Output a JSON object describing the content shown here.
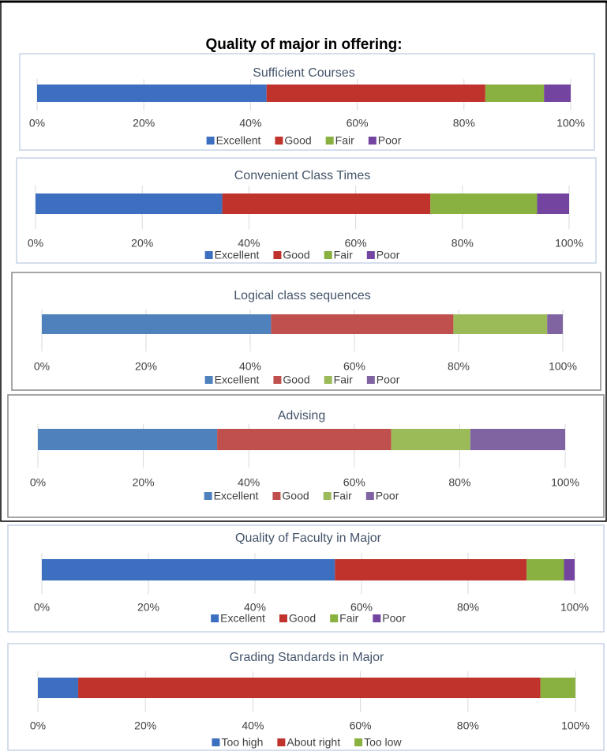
{
  "header": {
    "title": "Quality of major in offering:"
  },
  "chart_data": [
    {
      "type": "stacked-bar-horizontal",
      "title": "Sufficient Courses",
      "xlim": [
        0,
        100
      ],
      "xticks": [
        {
          "value": 0,
          "label": "0%"
        },
        {
          "value": 20,
          "label": "20%"
        },
        {
          "value": 40,
          "label": "40%"
        },
        {
          "value": 60,
          "label": "60%"
        },
        {
          "value": 80,
          "label": "80%"
        },
        {
          "value": 100,
          "label": "100%"
        }
      ],
      "grid": true,
      "legend": "bottom",
      "series": [
        {
          "name": "Excellent",
          "color": "#3c6fc0",
          "values": [
            43
          ]
        },
        {
          "name": "Good",
          "color": "#c0332d",
          "values": [
            41
          ]
        },
        {
          "name": "Fair",
          "color": "#88b13f",
          "values": [
            11
          ]
        },
        {
          "name": "Poor",
          "color": "#7345a0",
          "values": [
            5
          ]
        }
      ]
    },
    {
      "type": "stacked-bar-horizontal",
      "title": "Convenient Class Times",
      "xlim": [
        0,
        100
      ],
      "xticks": [
        {
          "value": 0,
          "label": "0%"
        },
        {
          "value": 20,
          "label": "20%"
        },
        {
          "value": 40,
          "label": "40%"
        },
        {
          "value": 60,
          "label": "60%"
        },
        {
          "value": 80,
          "label": "80%"
        },
        {
          "value": 100,
          "label": "100%"
        }
      ],
      "grid": true,
      "legend": "bottom",
      "series": [
        {
          "name": "Excellent",
          "color": "#3c6fc0",
          "values": [
            35
          ]
        },
        {
          "name": "Good",
          "color": "#c0332d",
          "values": [
            39
          ]
        },
        {
          "name": "Fair",
          "color": "#88b13f",
          "values": [
            20
          ]
        },
        {
          "name": "Poor",
          "color": "#7345a0",
          "values": [
            6
          ]
        }
      ]
    },
    {
      "type": "stacked-bar-horizontal",
      "title": "Logical class sequences",
      "xlim": [
        0,
        100
      ],
      "xticks": [
        {
          "value": 0,
          "label": "0%"
        },
        {
          "value": 20,
          "label": "20%"
        },
        {
          "value": 40,
          "label": "40%"
        },
        {
          "value": 60,
          "label": "60%"
        },
        {
          "value": 80,
          "label": "80%"
        },
        {
          "value": 100,
          "label": "100%"
        }
      ],
      "grid": true,
      "legend": "bottom",
      "series": [
        {
          "name": "Excellent",
          "color": "#4f81bd",
          "values": [
            44
          ]
        },
        {
          "name": "Good",
          "color": "#c0504d",
          "values": [
            35
          ]
        },
        {
          "name": "Fair",
          "color": "#9bbb59",
          "values": [
            18
          ]
        },
        {
          "name": "Poor",
          "color": "#8064a2",
          "values": [
            3
          ]
        }
      ]
    },
    {
      "type": "stacked-bar-horizontal",
      "title": "Advising",
      "xlim": [
        0,
        100
      ],
      "xticks": [
        {
          "value": 0,
          "label": "0%"
        },
        {
          "value": 20,
          "label": "20%"
        },
        {
          "value": 40,
          "label": "40%"
        },
        {
          "value": 60,
          "label": "60%"
        },
        {
          "value": 80,
          "label": "80%"
        },
        {
          "value": 100,
          "label": "100%"
        }
      ],
      "grid": true,
      "legend": "bottom",
      "series": [
        {
          "name": "Excellent",
          "color": "#4f81bd",
          "values": [
            34
          ]
        },
        {
          "name": "Good",
          "color": "#c0504d",
          "values": [
            33
          ]
        },
        {
          "name": "Fair",
          "color": "#9bbb59",
          "values": [
            15
          ]
        },
        {
          "name": "Poor",
          "color": "#8064a2",
          "values": [
            18
          ]
        }
      ]
    },
    {
      "type": "stacked-bar-horizontal",
      "title": "Quality of Faculty in Major",
      "xlim": [
        0,
        100
      ],
      "xticks": [
        {
          "value": 0,
          "label": "0%"
        },
        {
          "value": 20,
          "label": "20%"
        },
        {
          "value": 40,
          "label": "40%"
        },
        {
          "value": 60,
          "label": "60%"
        },
        {
          "value": 80,
          "label": "80%"
        },
        {
          "value": 100,
          "label": "100%"
        }
      ],
      "grid": true,
      "legend": "bottom",
      "series": [
        {
          "name": "Excellent",
          "color": "#3c6fc0",
          "values": [
            55
          ]
        },
        {
          "name": "Good",
          "color": "#c0332d",
          "values": [
            36
          ]
        },
        {
          "name": "Fair",
          "color": "#88b13f",
          "values": [
            7
          ]
        },
        {
          "name": "Poor",
          "color": "#7345a0",
          "values": [
            2
          ]
        }
      ]
    },
    {
      "type": "stacked-bar-horizontal",
      "title": "Grading Standards in Major",
      "xlim": [
        0,
        100
      ],
      "xticks": [
        {
          "value": 0,
          "label": "0%"
        },
        {
          "value": 20,
          "label": "20%"
        },
        {
          "value": 40,
          "label": "40%"
        },
        {
          "value": 60,
          "label": "60%"
        },
        {
          "value": 80,
          "label": "80%"
        },
        {
          "value": 100,
          "label": "100%"
        }
      ],
      "grid": true,
      "legend": "bottom",
      "series": [
        {
          "name": "Too high",
          "color": "#3c6fc0",
          "values": [
            7.5
          ]
        },
        {
          "name": "About right",
          "color": "#c0332d",
          "values": [
            86
          ]
        },
        {
          "name": "Too low",
          "color": "#88b13f",
          "values": [
            6.5
          ]
        }
      ]
    }
  ]
}
